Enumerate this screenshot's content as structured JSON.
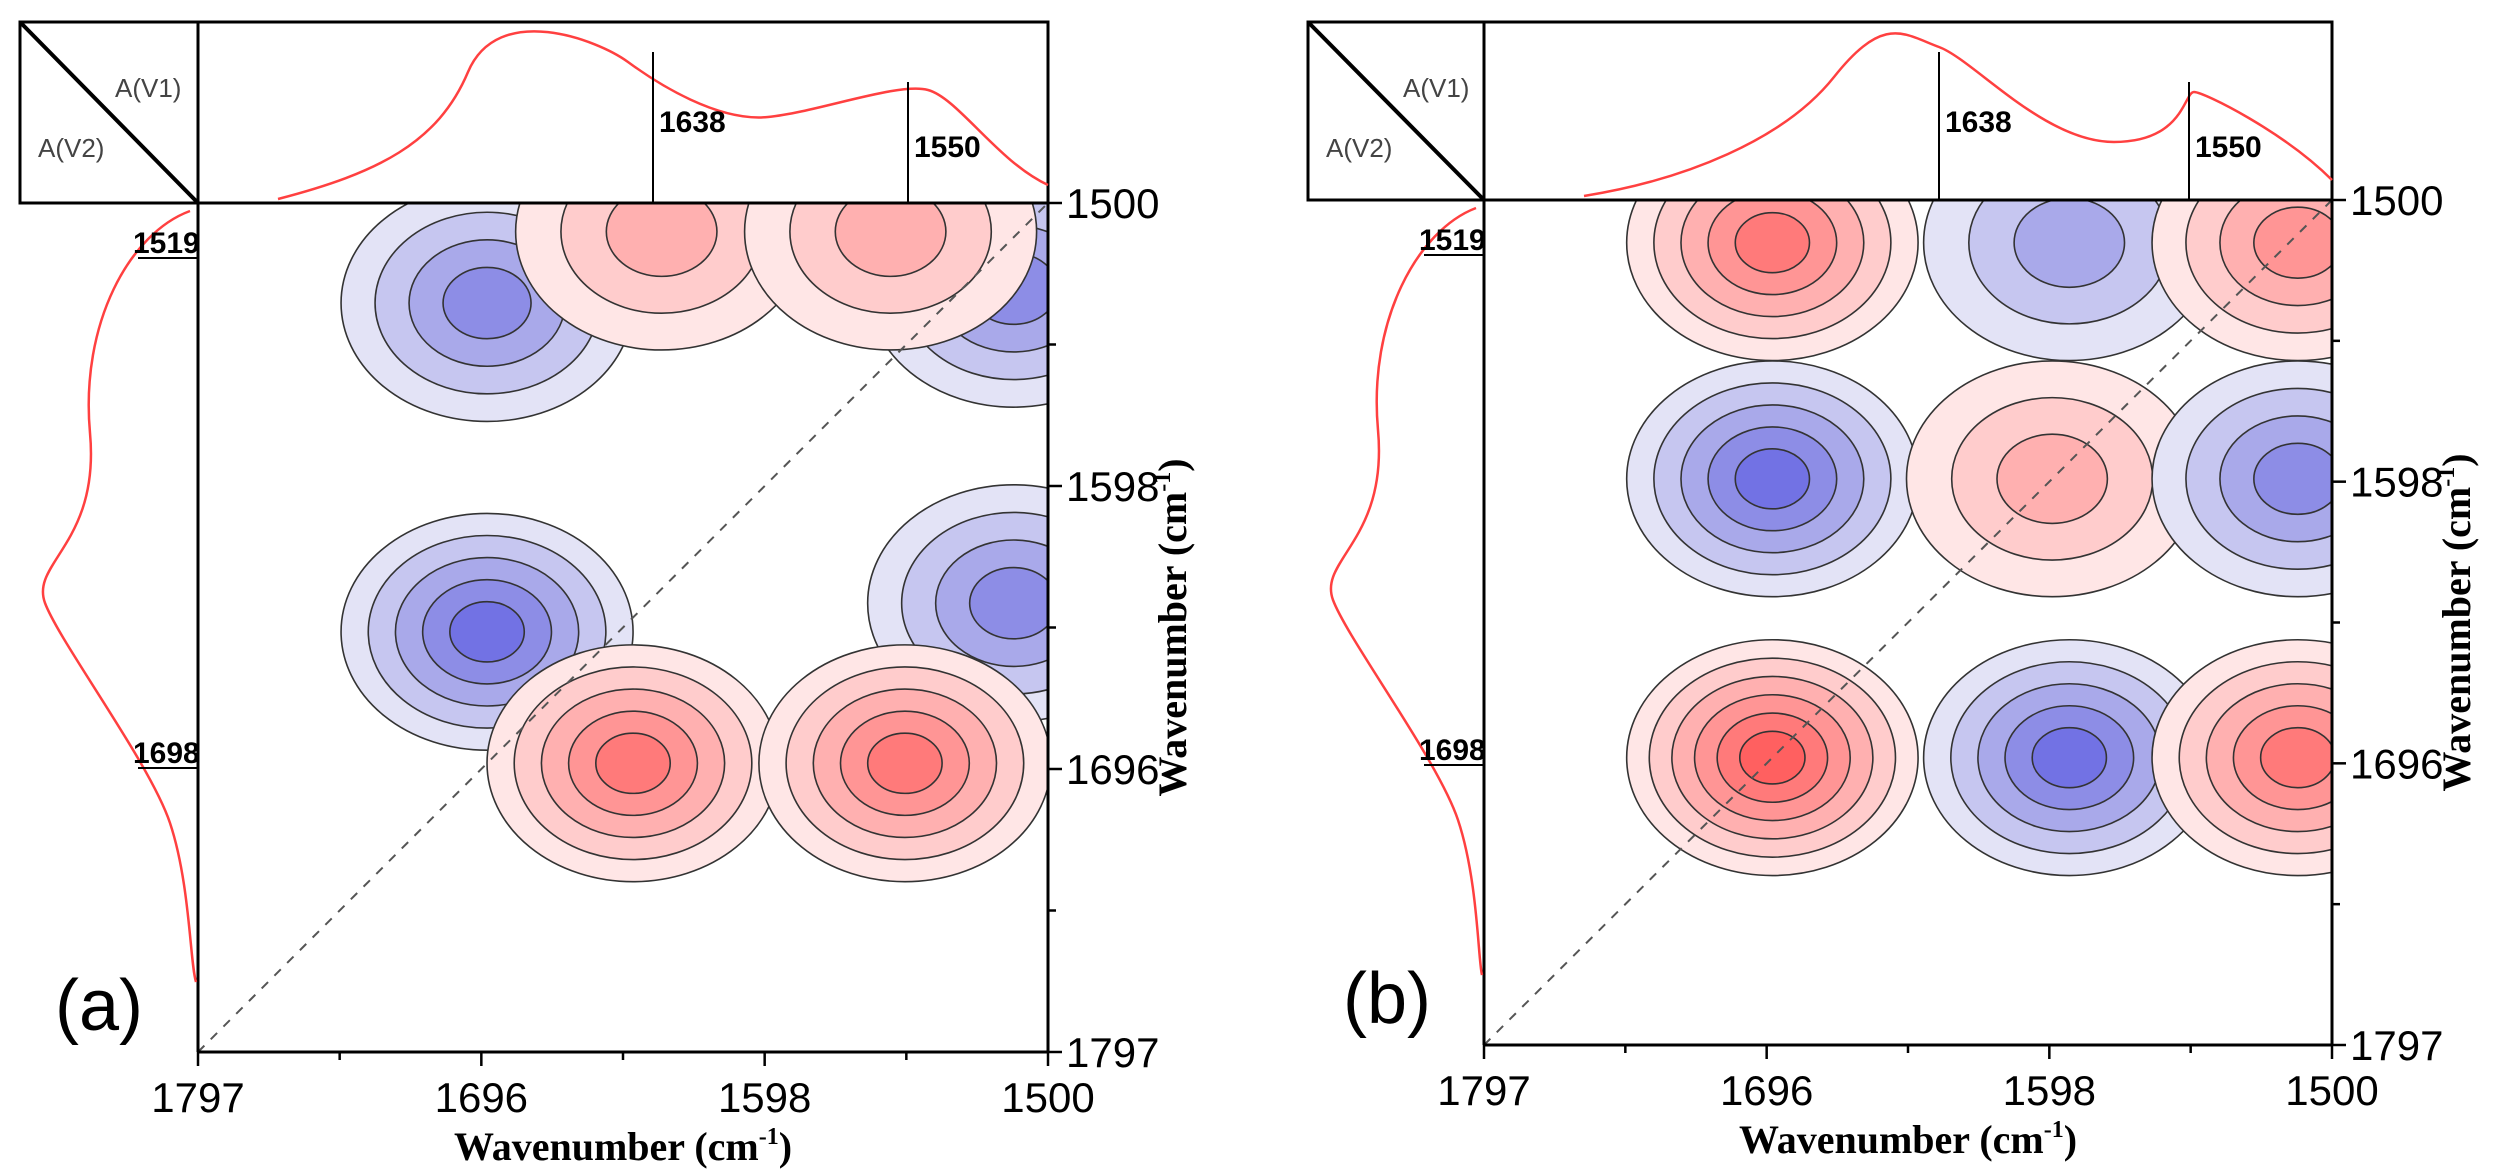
{
  "chart_data": [
    {
      "type": "heatmap",
      "subtype": "2D correlation synchronous contour map",
      "panel_label": "(a)",
      "corner_labels": [
        "A(V1)",
        "A(V2)"
      ],
      "xlabel": "Wavenumber (cm",
      "ylabel": "Wavenumber (cm",
      "xlabel_sup": "-1",
      "ylabel_sup": "-1",
      "xlabel_close": ")",
      "ylabel_close": ")",
      "x_ticks": [
        "1797",
        "1696",
        "1598",
        "1500"
      ],
      "y_ticks": [
        "1500",
        "1598",
        "1696",
        "1797"
      ],
      "xlim": [
        1797,
        1500
      ],
      "ylim": [
        1500,
        1797
      ],
      "top_peaks": [
        "1638",
        "1550"
      ],
      "left_peaks": [
        "1519",
        "1698"
      ],
      "peaks": [
        {
          "x": 1696,
          "y": 1535,
          "sign": "negative",
          "level": 4
        },
        {
          "x": 1696,
          "y": 1650,
          "sign": "negative",
          "level": 5
        },
        {
          "x": 1512,
          "y": 1530,
          "sign": "negative",
          "level": 4
        },
        {
          "x": 1512,
          "y": 1640,
          "sign": "negative",
          "level": 4
        },
        {
          "x": 1635,
          "y": 1510,
          "sign": "positive",
          "level": 3
        },
        {
          "x": 1555,
          "y": 1510,
          "sign": "positive",
          "level": 3
        },
        {
          "x": 1645,
          "y": 1696,
          "sign": "positive",
          "level": 5
        },
        {
          "x": 1550,
          "y": 1696,
          "sign": "positive",
          "level": 5
        }
      ]
    },
    {
      "type": "heatmap",
      "subtype": "2D correlation asynchronous contour map",
      "panel_label": "(b)",
      "corner_labels": [
        "A(V1)",
        "A(V2)"
      ],
      "xlabel": "Wavenumber (cm",
      "ylabel": "Wavenumber (cm",
      "xlabel_sup": "-1",
      "ylabel_sup": "-1",
      "xlabel_close": ")",
      "ylabel_close": ")",
      "x_ticks": [
        "1797",
        "1696",
        "1598",
        "1500"
      ],
      "y_ticks": [
        "1500",
        "1598",
        "1696",
        "1797"
      ],
      "xlim": [
        1797,
        1500
      ],
      "ylim": [
        1500,
        1797
      ],
      "top_peaks": [
        "1638",
        "1550"
      ],
      "left_peaks": [
        "1519",
        "1698"
      ],
      "peaks": [
        {
          "x": 1696,
          "y": 1515,
          "sign": "positive",
          "level": 5
        },
        {
          "x": 1592,
          "y": 1515,
          "sign": "negative",
          "level": 3
        },
        {
          "x": 1512,
          "y": 1515,
          "sign": "positive",
          "level": 4
        },
        {
          "x": 1696,
          "y": 1598,
          "sign": "negative",
          "level": 5
        },
        {
          "x": 1598,
          "y": 1598,
          "sign": "positive",
          "level": 3
        },
        {
          "x": 1512,
          "y": 1598,
          "sign": "negative",
          "level": 4
        },
        {
          "x": 1696,
          "y": 1696,
          "sign": "positive",
          "level": 6
        },
        {
          "x": 1592,
          "y": 1696,
          "sign": "negative",
          "level": 5
        },
        {
          "x": 1512,
          "y": 1696,
          "sign": "positive",
          "level": 5
        }
      ]
    }
  ]
}
